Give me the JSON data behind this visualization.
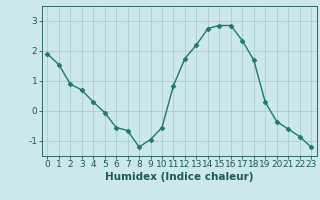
{
  "x": [
    0,
    1,
    2,
    3,
    4,
    5,
    6,
    7,
    8,
    9,
    10,
    11,
    12,
    13,
    14,
    15,
    16,
    17,
    18,
    19,
    20,
    21,
    22,
    23
  ],
  "y": [
    1.9,
    1.55,
    0.9,
    0.7,
    0.3,
    -0.05,
    -0.55,
    -0.65,
    -1.2,
    -0.95,
    -0.55,
    0.85,
    1.75,
    2.2,
    2.75,
    2.85,
    2.85,
    2.35,
    1.7,
    0.3,
    -0.35,
    -0.6,
    -0.85,
    -1.2
  ],
  "line_color": "#1a7a6e",
  "marker": "D",
  "marker_size": 2.5,
  "bg_color": "#cce8ea",
  "grid_color": "#aacdd2",
  "xlabel": "Humidex (Indice chaleur)",
  "xlim": [
    -0.5,
    23.5
  ],
  "ylim": [
    -1.5,
    3.5
  ],
  "yticks": [
    -1,
    0,
    1,
    2,
    3
  ],
  "xticks": [
    0,
    1,
    2,
    3,
    4,
    5,
    6,
    7,
    8,
    9,
    10,
    11,
    12,
    13,
    14,
    15,
    16,
    17,
    18,
    19,
    20,
    21,
    22,
    23
  ],
  "font_color": "#1a5a5a",
  "xlabel_fontsize": 7.5,
  "tick_fontsize": 6.5,
  "axis_color": "#2a6a6a",
  "line_width": 1.0
}
